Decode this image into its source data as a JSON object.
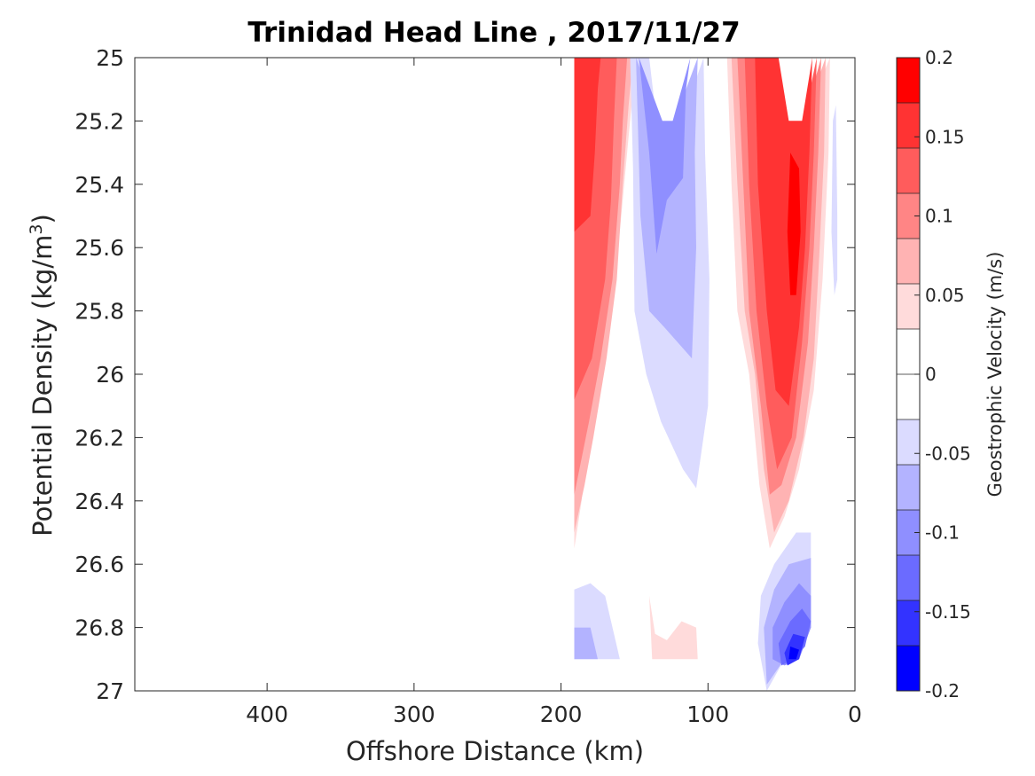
{
  "chart_data": {
    "type": "heatmap",
    "subtype": "filled-contour",
    "title": "Trinidad Head Line , 2017/11/27",
    "xlabel": "Offshore Distance (km)",
    "ylabel": "Potential Density (kg/m",
    "ylabel_sup": "3",
    "ylabel_close": ")",
    "xlim": [
      490,
      0
    ],
    "x_reversed": true,
    "ylim": [
      25,
      27
    ],
    "y_reversed": true,
    "xticks": [
      400,
      300,
      200,
      100,
      0
    ],
    "xtick_labels": [
      "400",
      "300",
      "200",
      "100",
      "0"
    ],
    "yticks": [
      25,
      25.2,
      25.4,
      25.6,
      25.8,
      26,
      26.2,
      26.4,
      26.6,
      26.8,
      27
    ],
    "ytick_labels": [
      "25",
      "25.2",
      "25.4",
      "25.6",
      "25.8",
      "26",
      "26.2",
      "26.4",
      "26.6",
      "26.8",
      "27"
    ],
    "grid": false,
    "colorbar": {
      "label": "Geostrophic Velocity (m/s)",
      "range": [
        -0.2,
        0.2
      ],
      "ticks": [
        0.2,
        0.15,
        0.1,
        0.05,
        0,
        -0.05,
        -0.1,
        -0.15,
        -0.2
      ],
      "tick_labels": [
        "0.2",
        "0.15",
        "0.1",
        "0.05",
        "0",
        "-0.05",
        "-0.1",
        "-0.15",
        "-0.2"
      ],
      "colors_top_to_bottom": [
        "#ff0000",
        "#ff3333",
        "#ff5c5c",
        "#ff8585",
        "#ffb3b3",
        "#ffdbdb",
        "#ffffff",
        "#ffffff",
        "#dbdbff",
        "#b3b3ff",
        "#8f8fff",
        "#6b6bff",
        "#3333ff",
        "#0000ff"
      ]
    },
    "contour_regions": [
      {
        "level": 0.025,
        "color": "#ffdbdb",
        "points": [
          [
            191,
            25
          ],
          [
            191,
            26.55
          ],
          [
            186,
            26.4
          ],
          [
            182,
            26.2
          ],
          [
            172,
            25.95
          ],
          [
            163,
            25.7
          ],
          [
            157,
            25.4
          ],
          [
            152,
            25.15
          ],
          [
            148,
            25
          ]
        ]
      },
      {
        "level": 0.05,
        "color": "#ffb3b3",
        "points": [
          [
            191,
            25
          ],
          [
            191,
            26.5
          ],
          [
            184,
            26.35
          ],
          [
            178,
            26.2
          ],
          [
            169,
            25.95
          ],
          [
            162,
            25.7
          ],
          [
            158,
            25.4
          ],
          [
            154,
            25.15
          ],
          [
            151,
            25
          ]
        ]
      },
      {
        "level": 0.075,
        "color": "#ff8585",
        "points": [
          [
            191,
            25
          ],
          [
            191,
            26.38
          ],
          [
            181,
            26.15
          ],
          [
            173,
            25.95
          ],
          [
            165,
            25.7
          ],
          [
            160,
            25.4
          ],
          [
            158,
            25.2
          ],
          [
            155,
            25
          ]
        ]
      },
      {
        "level": 0.1,
        "color": "#ff5c5c",
        "points": [
          [
            191,
            25
          ],
          [
            191,
            26.08
          ],
          [
            179,
            25.95
          ],
          [
            170,
            25.7
          ],
          [
            166,
            25.45
          ],
          [
            164,
            25.2
          ],
          [
            162,
            25
          ]
        ]
      },
      {
        "level": 0.125,
        "color": "#ff3333",
        "points": [
          [
            191,
            25
          ],
          [
            191,
            25.55
          ],
          [
            180,
            25.5
          ],
          [
            177,
            25.3
          ],
          [
            175,
            25.1
          ],
          [
            173,
            25
          ]
        ]
      },
      {
        "level": -0.025,
        "color": "#dbdbff",
        "points": [
          [
            153,
            25
          ],
          [
            151,
            25.35
          ],
          [
            150,
            25.8
          ],
          [
            142,
            26.0
          ],
          [
            132,
            26.15
          ],
          [
            117,
            26.3
          ],
          [
            108,
            26.36
          ],
          [
            100,
            26.1
          ],
          [
            99,
            25.7
          ],
          [
            102,
            25.3
          ],
          [
            103,
            25
          ],
          [
            118,
            25.2
          ],
          [
            135,
            25.2
          ],
          [
            140,
            25
          ]
        ]
      },
      {
        "level": -0.05,
        "color": "#b3b3ff",
        "points": [
          [
            149,
            25
          ],
          [
            146,
            25.5
          ],
          [
            140,
            25.8
          ],
          [
            130,
            25.85
          ],
          [
            111,
            25.95
          ],
          [
            108,
            25.6
          ],
          [
            109,
            25.3
          ],
          [
            107,
            25
          ],
          [
            123,
            25.2
          ],
          [
            133,
            25.2
          ]
        ]
      },
      {
        "level": -0.075,
        "color": "#8f8fff",
        "points": [
          [
            147,
            25
          ],
          [
            140,
            25.3
          ],
          [
            135,
            25.62
          ],
          [
            128,
            25.45
          ],
          [
            117,
            25.38
          ],
          [
            115,
            25.1
          ],
          [
            112,
            25
          ],
          [
            124,
            25.2
          ],
          [
            131,
            25.2
          ]
        ]
      },
      {
        "level": 0.025,
        "color": "#ffdbdb",
        "points": [
          [
            87,
            25
          ],
          [
            84,
            25.4
          ],
          [
            80,
            25.8
          ],
          [
            72,
            26.0
          ],
          [
            65,
            26.35
          ],
          [
            58,
            26.55
          ],
          [
            48,
            26.45
          ],
          [
            38,
            26.3
          ],
          [
            28,
            26.05
          ],
          [
            22,
            25.7
          ],
          [
            18,
            25.3
          ],
          [
            17,
            25
          ],
          [
            35,
            25.2
          ],
          [
            47,
            25.2
          ],
          [
            60,
            25
          ]
        ]
      },
      {
        "level": 0.05,
        "color": "#ffb3b3",
        "points": [
          [
            84,
            25
          ],
          [
            80,
            25.4
          ],
          [
            75,
            25.8
          ],
          [
            68,
            26.0
          ],
          [
            62,
            26.3
          ],
          [
            55,
            26.5
          ],
          [
            45,
            26.4
          ],
          [
            35,
            26.2
          ],
          [
            28,
            25.95
          ],
          [
            24,
            25.6
          ],
          [
            21,
            25.3
          ],
          [
            20,
            25
          ],
          [
            35,
            25.2
          ],
          [
            47,
            25.2
          ],
          [
            58,
            25
          ]
        ]
      },
      {
        "level": 0.075,
        "color": "#ff8585",
        "points": [
          [
            80,
            25
          ],
          [
            76,
            25.4
          ],
          [
            72,
            25.8
          ],
          [
            64,
            26.1
          ],
          [
            58,
            26.38
          ],
          [
            50,
            26.35
          ],
          [
            40,
            26.2
          ],
          [
            32,
            25.9
          ],
          [
            28,
            25.6
          ],
          [
            25,
            25.3
          ],
          [
            23,
            25
          ],
          [
            35,
            25.2
          ],
          [
            47,
            25.2
          ],
          [
            56,
            25
          ]
        ]
      },
      {
        "level": 0.1,
        "color": "#ff5c5c",
        "points": [
          [
            75,
            25
          ],
          [
            72,
            25.4
          ],
          [
            67,
            25.8
          ],
          [
            60,
            26.1
          ],
          [
            53,
            26.3
          ],
          [
            43,
            26.2
          ],
          [
            36,
            25.9
          ],
          [
            31,
            25.6
          ],
          [
            28,
            25.3
          ],
          [
            26,
            25
          ],
          [
            35,
            25.2
          ],
          [
            47,
            25.2
          ],
          [
            54,
            25
          ]
        ]
      },
      {
        "level": 0.125,
        "color": "#ff3333",
        "points": [
          [
            68,
            25
          ],
          [
            66,
            25.4
          ],
          [
            60,
            25.8
          ],
          [
            54,
            26.05
          ],
          [
            45,
            26.1
          ],
          [
            38,
            25.85
          ],
          [
            34,
            25.6
          ],
          [
            31,
            25.3
          ],
          [
            29,
            25
          ],
          [
            36,
            25.2
          ],
          [
            45,
            25.2
          ],
          [
            52,
            25
          ]
        ]
      },
      {
        "level": 0.15,
        "color": "#ff0000",
        "points": [
          [
            44,
            25.3
          ],
          [
            46,
            25.55
          ],
          [
            44,
            25.75
          ],
          [
            40,
            25.75
          ],
          [
            37,
            25.55
          ],
          [
            38,
            25.35
          ]
        ]
      },
      {
        "level": -0.025,
        "color": "#dbdbff",
        "points": [
          [
            13,
            25.15
          ],
          [
            12,
            25.5
          ],
          [
            12,
            25.7
          ],
          [
            14,
            25.75
          ],
          [
            16,
            25.55
          ],
          [
            15,
            25.2
          ]
        ]
      },
      {
        "level": -0.025,
        "color": "#dbdbff",
        "points": [
          [
            191,
            26.68
          ],
          [
            180,
            26.66
          ],
          [
            170,
            26.7
          ],
          [
            160,
            26.9
          ],
          [
            191,
            26.9
          ]
        ]
      },
      {
        "level": -0.05,
        "color": "#b3b3ff",
        "points": [
          [
            191,
            26.8
          ],
          [
            180,
            26.8
          ],
          [
            175,
            26.9
          ],
          [
            191,
            26.9
          ]
        ]
      },
      {
        "level": 0.025,
        "color": "#ffdbdb",
        "points": [
          [
            140,
            26.7
          ],
          [
            138,
            26.9
          ],
          [
            107,
            26.9
          ],
          [
            108,
            26.8
          ],
          [
            118,
            26.78
          ],
          [
            128,
            26.84
          ],
          [
            136,
            26.82
          ]
        ]
      },
      {
        "level": -0.025,
        "color": "#dbdbff",
        "points": [
          [
            30,
            26.5
          ],
          [
            30,
            26.8
          ],
          [
            38,
            26.9
          ],
          [
            48,
            26.9
          ],
          [
            60,
            27.0
          ],
          [
            66,
            26.85
          ],
          [
            64,
            26.7
          ],
          [
            55,
            26.6
          ],
          [
            40,
            26.5
          ]
        ]
      },
      {
        "level": -0.05,
        "color": "#b3b3ff",
        "points": [
          [
            30,
            26.58
          ],
          [
            30,
            26.8
          ],
          [
            38,
            26.9
          ],
          [
            48,
            26.9
          ],
          [
            60,
            26.98
          ],
          [
            62,
            26.8
          ],
          [
            55,
            26.68
          ],
          [
            45,
            26.6
          ]
        ]
      },
      {
        "level": -0.075,
        "color": "#8f8fff",
        "points": [
          [
            30,
            26.7
          ],
          [
            30,
            26.8
          ],
          [
            38,
            26.9
          ],
          [
            48,
            26.92
          ],
          [
            56,
            26.9
          ],
          [
            56,
            26.8
          ],
          [
            48,
            26.72
          ],
          [
            38,
            26.66
          ]
        ]
      },
      {
        "level": -0.1,
        "color": "#6b6bff",
        "points": [
          [
            30,
            26.78
          ],
          [
            34,
            26.86
          ],
          [
            42,
            26.9
          ],
          [
            50,
            26.92
          ],
          [
            52,
            26.85
          ],
          [
            44,
            26.78
          ],
          [
            36,
            26.74
          ]
        ]
      },
      {
        "level": -0.15,
        "color": "#3333ff",
        "points": [
          [
            34,
            26.83
          ],
          [
            38,
            26.9
          ],
          [
            46,
            26.92
          ],
          [
            48,
            26.88
          ],
          [
            42,
            26.82
          ]
        ]
      },
      {
        "level": -0.2,
        "color": "#0000ff",
        "points": [
          [
            38,
            26.87
          ],
          [
            40,
            26.9
          ],
          [
            45,
            26.9
          ],
          [
            44,
            26.86
          ]
        ]
      }
    ]
  }
}
